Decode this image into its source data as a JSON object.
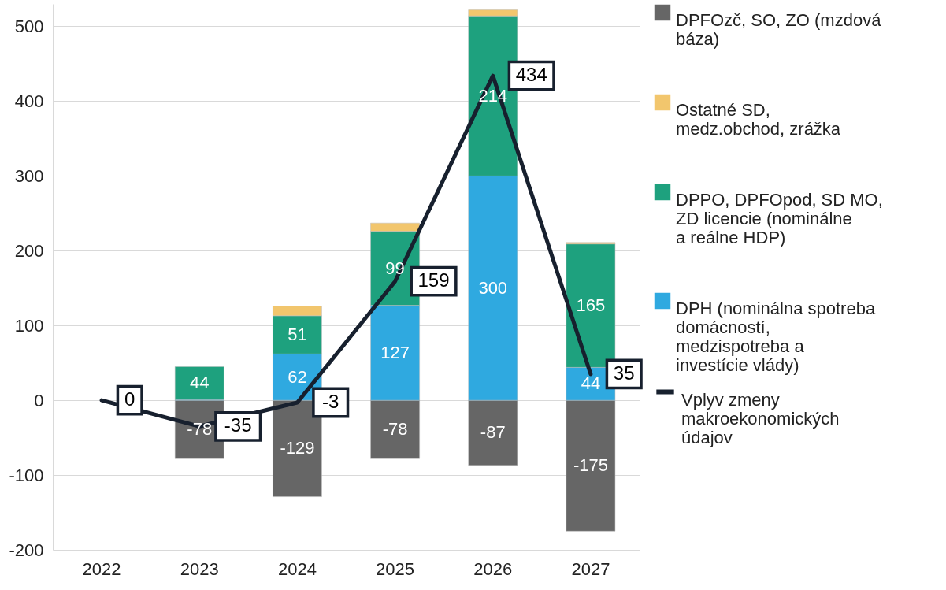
{
  "chart_data": {
    "type": "bar",
    "stacked": true,
    "categories": [
      "2022",
      "2023",
      "2024",
      "2025",
      "2026",
      "2027"
    ],
    "ylim": [
      -200,
      530
    ],
    "yticks": [
      -200,
      -100,
      0,
      100,
      200,
      300,
      400,
      500
    ],
    "grid": "y",
    "legend": "right",
    "series": [
      {
        "name": "DPFOzč, SO, ZO (mzdová báza)",
        "color": "#666666",
        "values": [
          null,
          -78,
          -129,
          -78,
          -87,
          -175
        ],
        "value_labels": [
          null,
          "-78",
          "-129",
          "-78",
          "-87",
          "-175"
        ]
      },
      {
        "name": "DPH (nominálna spotreba domácností, medzispotreba a investície vlády)",
        "color": "#2fa9e0",
        "values": [
          null,
          1,
          62,
          127,
          300,
          44
        ],
        "value_labels": [
          null,
          null,
          "62",
          "127",
          "300",
          "44"
        ]
      },
      {
        "name": "DPPO, DPFOpod, SD MO, ZD licencie (nominálne a reálne HDP)",
        "color": "#1ea17e",
        "values": [
          null,
          44,
          51,
          99,
          214,
          165
        ],
        "value_labels": [
          null,
          "44",
          "51",
          "99",
          "214",
          "165"
        ]
      },
      {
        "name": "Ostatné SD, medz.obchod, zrážka",
        "color": "#f2c66d",
        "values": [
          null,
          null,
          13,
          11,
          8,
          2
        ]
      },
      {
        "name": "Vplyv zmeny makroekonomických údajov",
        "type": "line",
        "color": "#17202e",
        "values": [
          0,
          -35,
          -3,
          159,
          434,
          35
        ],
        "value_labels": [
          "0",
          "-35",
          "-3",
          "159",
          "434",
          "35"
        ]
      }
    ]
  }
}
